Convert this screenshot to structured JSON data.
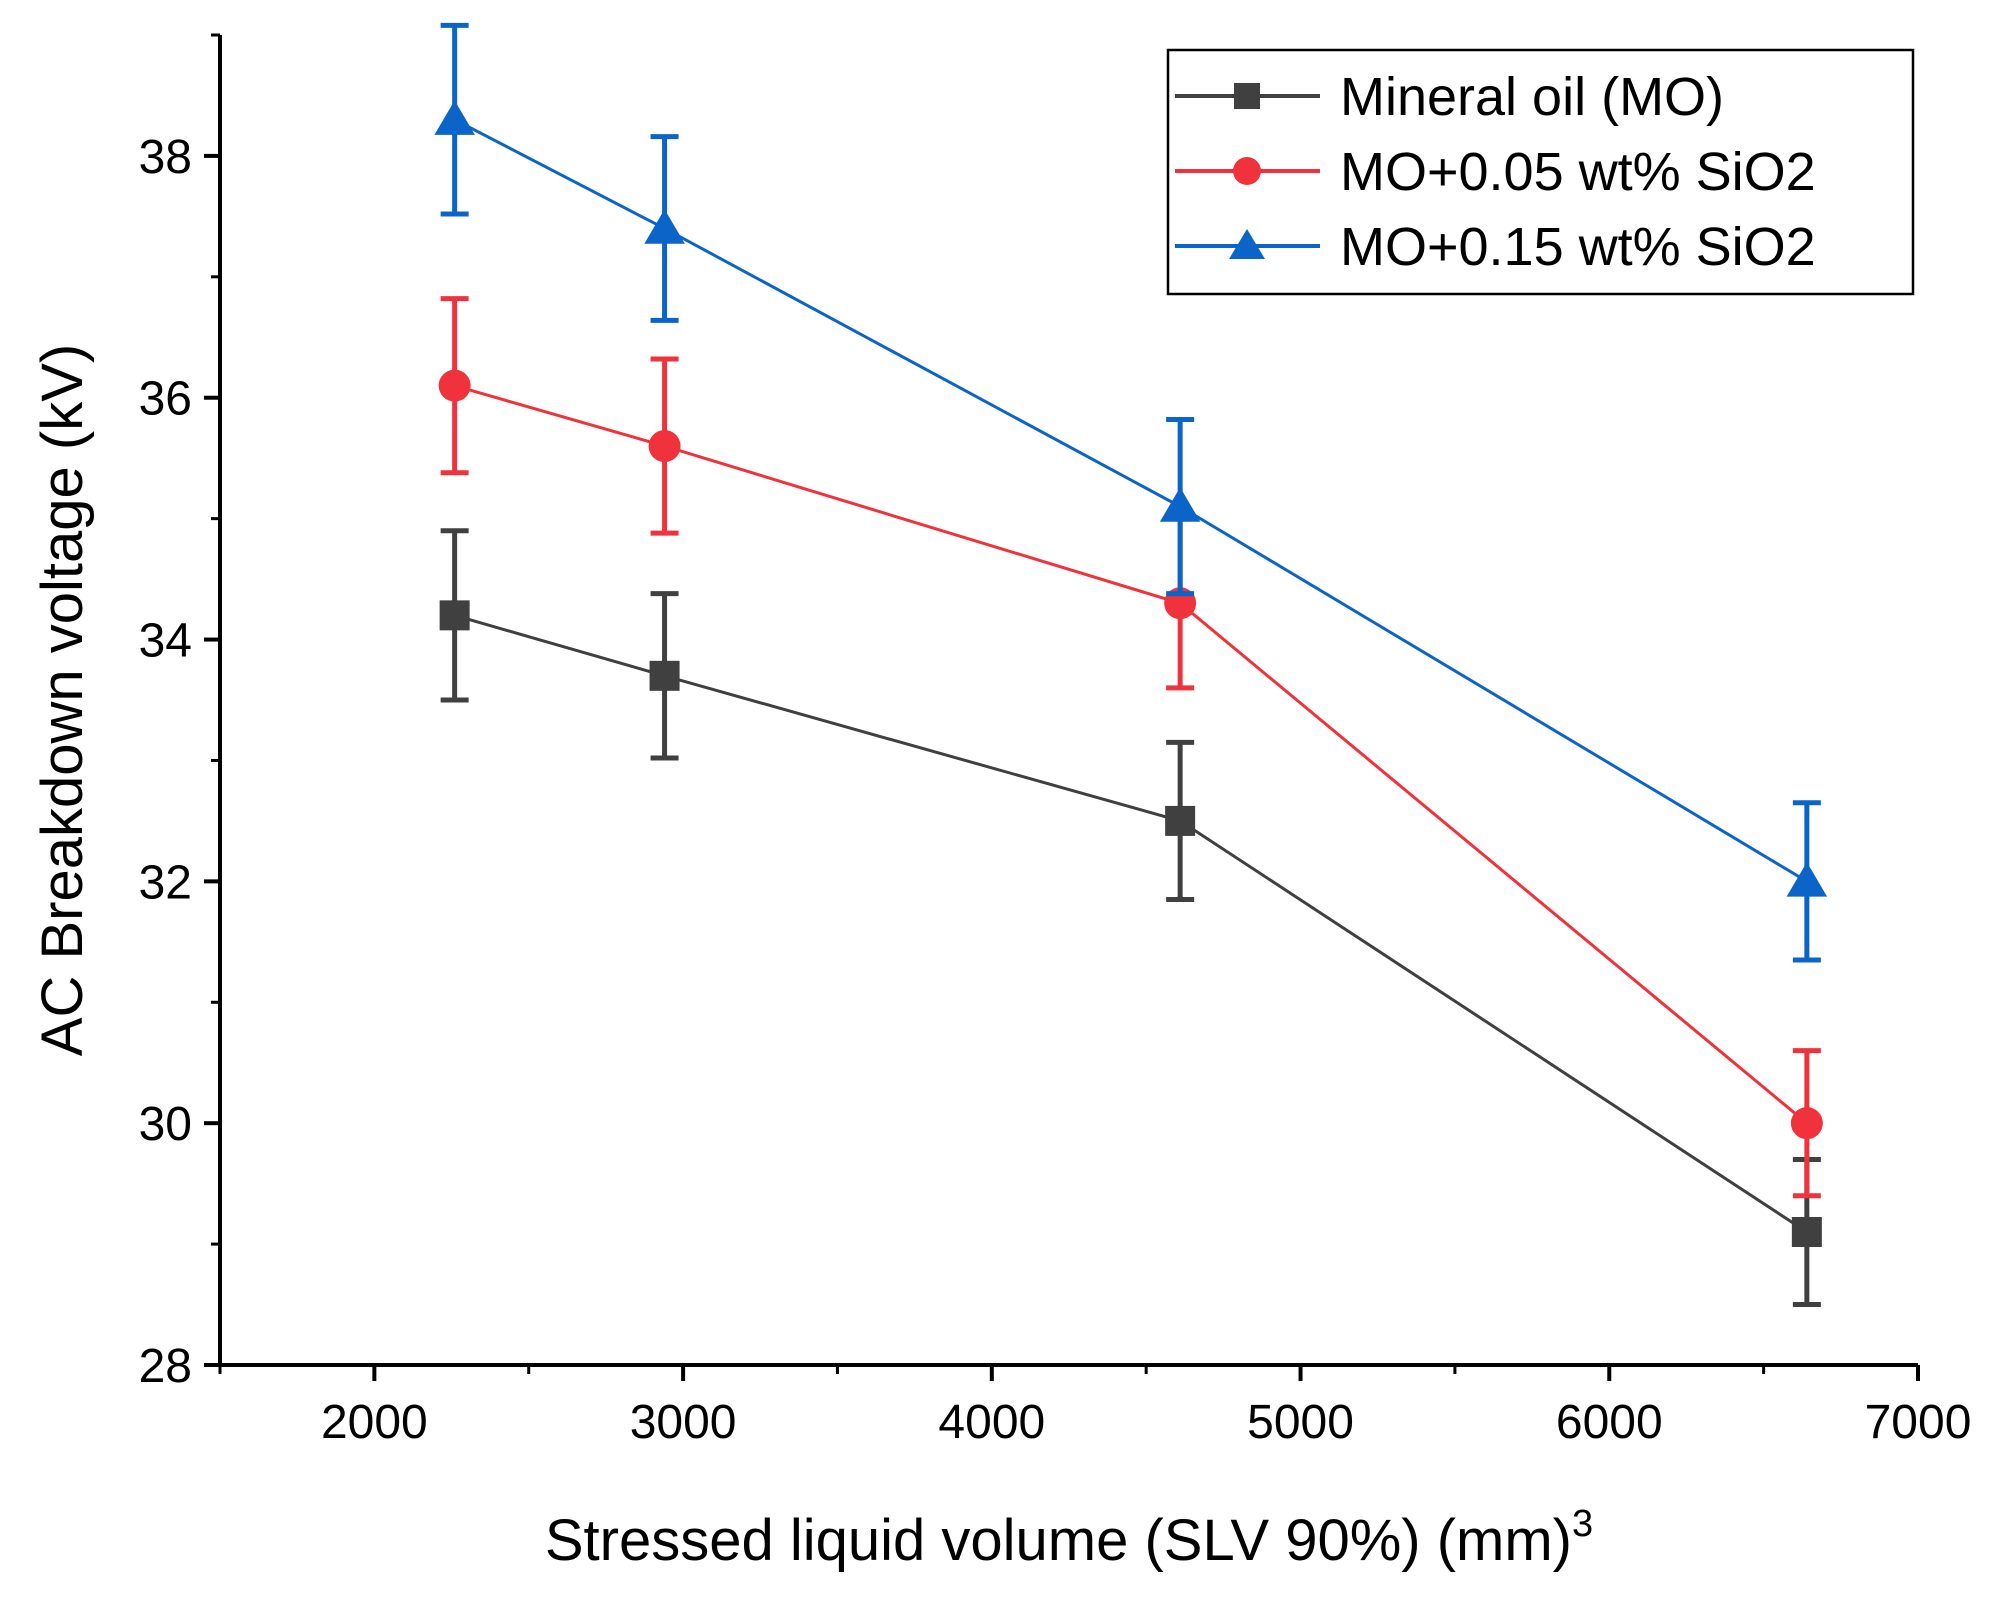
{
  "chart_data": {
    "type": "line",
    "title": "",
    "xlabel": "Stressed liquid volume (SLV 90%) (mm)",
    "xlabel_superscript": "3",
    "ylabel": "AC Breakdown voltage (kV)",
    "xlim": [
      1500,
      7000
    ],
    "ylim": [
      28,
      39
    ],
    "xticks": [
      2000,
      3000,
      4000,
      5000,
      6000,
      7000
    ],
    "yticks": [
      28,
      30,
      32,
      34,
      36,
      38
    ],
    "grid": false,
    "legend_position": "top-right",
    "x": [
      2260,
      2940,
      4610,
      6640
    ],
    "series": [
      {
        "name": "Mineral oil (MO)",
        "color": "#404040",
        "marker": "square",
        "values": [
          34.2,
          33.7,
          32.5,
          29.1
        ],
        "errors": [
          0.7,
          0.68,
          0.65,
          0.6
        ]
      },
      {
        "name": "MO+0.05 wt% SiO2",
        "color": "#f0323c",
        "marker": "circle",
        "values": [
          36.1,
          35.6,
          34.3,
          30.0
        ],
        "errors": [
          0.72,
          0.72,
          0.7,
          0.6
        ]
      },
      {
        "name": "MO+0.15 wt% SiO2",
        "color": "#0b64c8",
        "marker": "triangle",
        "values": [
          38.3,
          37.4,
          35.1,
          32.0
        ],
        "errors": [
          0.78,
          0.76,
          0.72,
          0.65
        ]
      }
    ]
  }
}
